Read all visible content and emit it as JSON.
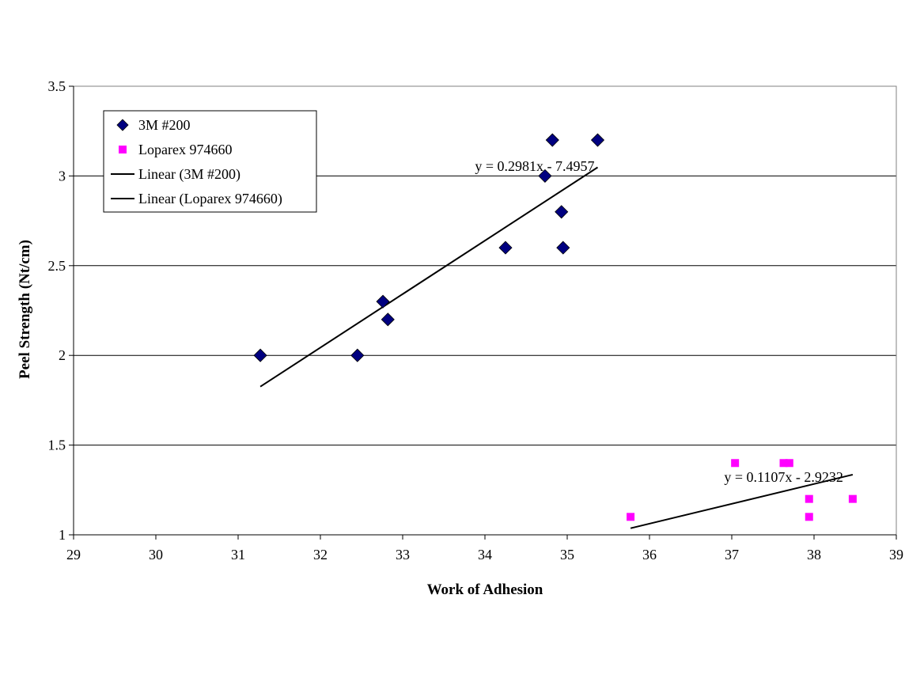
{
  "chart_data": {
    "type": "scatter",
    "title": "",
    "xlabel": "Work of Adhesion",
    "ylabel": "Peel Strength (Nt/cm)",
    "xlim": [
      29,
      39
    ],
    "ylim": [
      1,
      3.5
    ],
    "xticks": [
      29,
      30,
      31,
      32,
      33,
      34,
      35,
      36,
      37,
      38,
      39
    ],
    "yticks": [
      1,
      1.5,
      2,
      2.5,
      3,
      3.5
    ],
    "ytick_labels": [
      "1",
      "1.5",
      "2",
      "2.5",
      "3",
      "3.5"
    ],
    "grid": "horizontal major gridlines",
    "legend_position": "top-left",
    "series": [
      {
        "name": "3M #200",
        "marker": "diamond",
        "color": "#000080",
        "points": [
          {
            "x": 31.27,
            "y": 2.0
          },
          {
            "x": 32.45,
            "y": 2.0
          },
          {
            "x": 32.76,
            "y": 2.3
          },
          {
            "x": 32.82,
            "y": 2.2
          },
          {
            "x": 34.25,
            "y": 2.6
          },
          {
            "x": 34.73,
            "y": 3.0
          },
          {
            "x": 34.82,
            "y": 3.2
          },
          {
            "x": 34.93,
            "y": 2.8
          },
          {
            "x": 34.95,
            "y": 2.6
          },
          {
            "x": 35.37,
            "y": 3.2
          }
        ]
      },
      {
        "name": "Loparex 974660",
        "marker": "square",
        "color": "#ff00ff",
        "points": [
          {
            "x": 35.77,
            "y": 1.1
          },
          {
            "x": 37.04,
            "y": 1.4
          },
          {
            "x": 37.63,
            "y": 1.4
          },
          {
            "x": 37.7,
            "y": 1.4
          },
          {
            "x": 37.94,
            "y": 1.2
          },
          {
            "x": 37.94,
            "y": 1.1
          },
          {
            "x": 38.47,
            "y": 1.2
          }
        ]
      }
    ],
    "trendlines": [
      {
        "name": "Linear (3M #200)",
        "color": "#000000",
        "slope": 0.2981,
        "intercept": -7.4957,
        "x_range": [
          31.27,
          35.37
        ],
        "equation": "y = 0.2981x - 7.4957"
      },
      {
        "name": "Linear (Loparex 974660)",
        "color": "#000000",
        "slope": 0.1107,
        "intercept": -2.9232,
        "x_range": [
          35.77,
          38.47
        ],
        "equation": "y = 0.1107x - 2.9232"
      }
    ]
  }
}
